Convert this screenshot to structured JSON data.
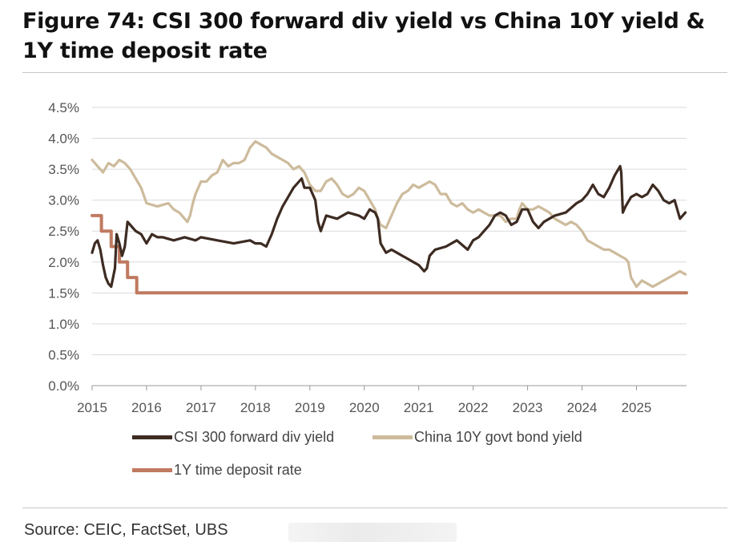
{
  "title": "Figure 74: CSI 300 forward div yield vs China 10Y yield & 1Y time deposit rate",
  "source": "Source: CEIC, FactSet, UBS",
  "chart_data": {
    "type": "line",
    "title": "Figure 74: CSI 300 forward div yield vs China 10Y yield & 1Y time deposit rate",
    "xlabel": "",
    "ylabel": "",
    "xlim": [
      2015,
      2025.92
    ],
    "ylim": [
      0,
      4.5
    ],
    "x_ticks": [
      "2015",
      "2016",
      "2017",
      "2018",
      "2019",
      "2020",
      "2021",
      "2022",
      "2023",
      "2024",
      "2025"
    ],
    "y_ticks": [
      "0.0%",
      "0.5%",
      "1.0%",
      "1.5%",
      "2.0%",
      "2.5%",
      "3.0%",
      "3.5%",
      "4.0%",
      "4.5%"
    ],
    "grid": "horizontal",
    "legend_position": "bottom",
    "series": [
      {
        "name": "CSI 300 forward div yield",
        "color": "#3d2b22",
        "x": [
          2015.0,
          2015.05,
          2015.1,
          2015.15,
          2015.2,
          2015.25,
          2015.3,
          2015.35,
          2015.42,
          2015.45,
          2015.5,
          2015.55,
          2015.6,
          2015.65,
          2015.7,
          2015.75,
          2015.8,
          2015.9,
          2016.0,
          2016.1,
          2016.2,
          2016.3,
          2016.5,
          2016.7,
          2016.9,
          2017.0,
          2017.3,
          2017.6,
          2017.9,
          2018.0,
          2018.1,
          2018.2,
          2018.3,
          2018.4,
          2018.5,
          2018.6,
          2018.7,
          2018.8,
          2018.85,
          2018.9,
          2019.0,
          2019.1,
          2019.15,
          2019.2,
          2019.3,
          2019.5,
          2019.7,
          2019.9,
          2020.0,
          2020.1,
          2020.2,
          2020.25,
          2020.3,
          2020.4,
          2020.5,
          2020.6,
          2020.7,
          2020.8,
          2020.9,
          2021.0,
          2021.1,
          2021.15,
          2021.2,
          2021.3,
          2021.5,
          2021.7,
          2021.9,
          2022.0,
          2022.1,
          2022.2,
          2022.3,
          2022.4,
          2022.5,
          2022.6,
          2022.7,
          2022.8,
          2022.9,
          2023.0,
          2023.1,
          2023.2,
          2023.3,
          2023.5,
          2023.7,
          2023.9,
          2024.0,
          2024.1,
          2024.2,
          2024.3,
          2024.4,
          2024.5,
          2024.6,
          2024.7,
          2024.72,
          2024.75,
          2024.8,
          2024.9,
          2025.0,
          2025.1,
          2025.2,
          2025.3,
          2025.4,
          2025.5,
          2025.6,
          2025.7,
          2025.8,
          2025.9
        ],
        "values": [
          2.15,
          2.3,
          2.35,
          2.2,
          1.95,
          1.75,
          1.65,
          1.6,
          1.9,
          2.45,
          2.3,
          2.1,
          2.25,
          2.65,
          2.6,
          2.55,
          2.5,
          2.45,
          2.3,
          2.45,
          2.4,
          2.4,
          2.35,
          2.4,
          2.35,
          2.4,
          2.35,
          2.3,
          2.35,
          2.3,
          2.3,
          2.25,
          2.45,
          2.7,
          2.9,
          3.05,
          3.2,
          3.3,
          3.35,
          3.2,
          3.2,
          3.0,
          2.65,
          2.5,
          2.75,
          2.7,
          2.8,
          2.75,
          2.7,
          2.85,
          2.8,
          2.7,
          2.3,
          2.15,
          2.2,
          2.15,
          2.1,
          2.05,
          2.0,
          1.95,
          1.85,
          1.9,
          2.1,
          2.2,
          2.25,
          2.35,
          2.2,
          2.35,
          2.4,
          2.5,
          2.6,
          2.75,
          2.8,
          2.75,
          2.6,
          2.65,
          2.85,
          2.85,
          2.65,
          2.55,
          2.65,
          2.75,
          2.8,
          2.95,
          3.0,
          3.1,
          3.25,
          3.1,
          3.05,
          3.2,
          3.4,
          3.55,
          3.45,
          2.8,
          2.9,
          3.05,
          3.1,
          3.05,
          3.1,
          3.25,
          3.15,
          3.0,
          2.95,
          3.0,
          2.7,
          2.8
        ]
      },
      {
        "name": "China 10Y govt bond yield",
        "color": "#cdbb9c",
        "x": [
          2015.0,
          2015.1,
          2015.2,
          2015.3,
          2015.4,
          2015.5,
          2015.6,
          2015.7,
          2015.8,
          2015.9,
          2016.0,
          2016.2,
          2016.4,
          2016.5,
          2016.6,
          2016.7,
          2016.75,
          2016.8,
          2016.85,
          2016.9,
          2017.0,
          2017.1,
          2017.2,
          2017.3,
          2017.4,
          2017.5,
          2017.6,
          2017.7,
          2017.8,
          2017.9,
          2018.0,
          2018.1,
          2018.2,
          2018.3,
          2018.4,
          2018.5,
          2018.6,
          2018.7,
          2018.8,
          2018.9,
          2019.0,
          2019.1,
          2019.2,
          2019.3,
          2019.4,
          2019.5,
          2019.6,
          2019.7,
          2019.8,
          2019.9,
          2020.0,
          2020.1,
          2020.2,
          2020.25,
          2020.3,
          2020.4,
          2020.5,
          2020.6,
          2020.7,
          2020.8,
          2020.9,
          2021.0,
          2021.1,
          2021.2,
          2021.3,
          2021.4,
          2021.5,
          2021.6,
          2021.7,
          2021.8,
          2021.9,
          2022.0,
          2022.1,
          2022.2,
          2022.3,
          2022.4,
          2022.5,
          2022.6,
          2022.7,
          2022.8,
          2022.85,
          2022.9,
          2023.0,
          2023.1,
          2023.2,
          2023.3,
          2023.4,
          2023.5,
          2023.6,
          2023.7,
          2023.8,
          2023.9,
          2024.0,
          2024.1,
          2024.2,
          2024.3,
          2024.4,
          2024.5,
          2024.6,
          2024.7,
          2024.8,
          2024.85,
          2024.9,
          2025.0,
          2025.1,
          2025.2,
          2025.3,
          2025.4,
          2025.5,
          2025.6,
          2025.7,
          2025.8,
          2025.9
        ],
        "values": [
          3.65,
          3.55,
          3.45,
          3.6,
          3.55,
          3.65,
          3.6,
          3.5,
          3.35,
          3.2,
          2.95,
          2.9,
          2.95,
          2.85,
          2.8,
          2.7,
          2.65,
          2.75,
          2.95,
          3.1,
          3.3,
          3.3,
          3.4,
          3.45,
          3.65,
          3.55,
          3.6,
          3.6,
          3.65,
          3.85,
          3.95,
          3.9,
          3.85,
          3.75,
          3.7,
          3.65,
          3.6,
          3.5,
          3.55,
          3.45,
          3.25,
          3.15,
          3.15,
          3.3,
          3.35,
          3.25,
          3.1,
          3.05,
          3.1,
          3.2,
          3.15,
          3.0,
          2.85,
          2.7,
          2.6,
          2.55,
          2.75,
          2.95,
          3.1,
          3.15,
          3.25,
          3.2,
          3.25,
          3.3,
          3.25,
          3.1,
          3.1,
          2.95,
          2.9,
          2.95,
          2.85,
          2.8,
          2.85,
          2.8,
          2.75,
          2.75,
          2.75,
          2.65,
          2.7,
          2.7,
          2.85,
          2.95,
          2.85,
          2.85,
          2.9,
          2.85,
          2.8,
          2.7,
          2.65,
          2.6,
          2.65,
          2.6,
          2.5,
          2.35,
          2.3,
          2.25,
          2.2,
          2.2,
          2.15,
          2.1,
          2.05,
          2.0,
          1.75,
          1.6,
          1.7,
          1.65,
          1.6,
          1.65,
          1.7,
          1.75,
          1.8,
          1.85,
          1.8
        ]
      },
      {
        "name": "1Y time deposit rate",
        "color": "#c07a60",
        "step": true,
        "x": [
          2015.0,
          2015.17,
          2015.35,
          2015.5,
          2015.65,
          2015.82,
          2025.92
        ],
        "values": [
          2.75,
          2.5,
          2.25,
          2.0,
          1.75,
          1.5,
          1.5
        ]
      }
    ]
  }
}
